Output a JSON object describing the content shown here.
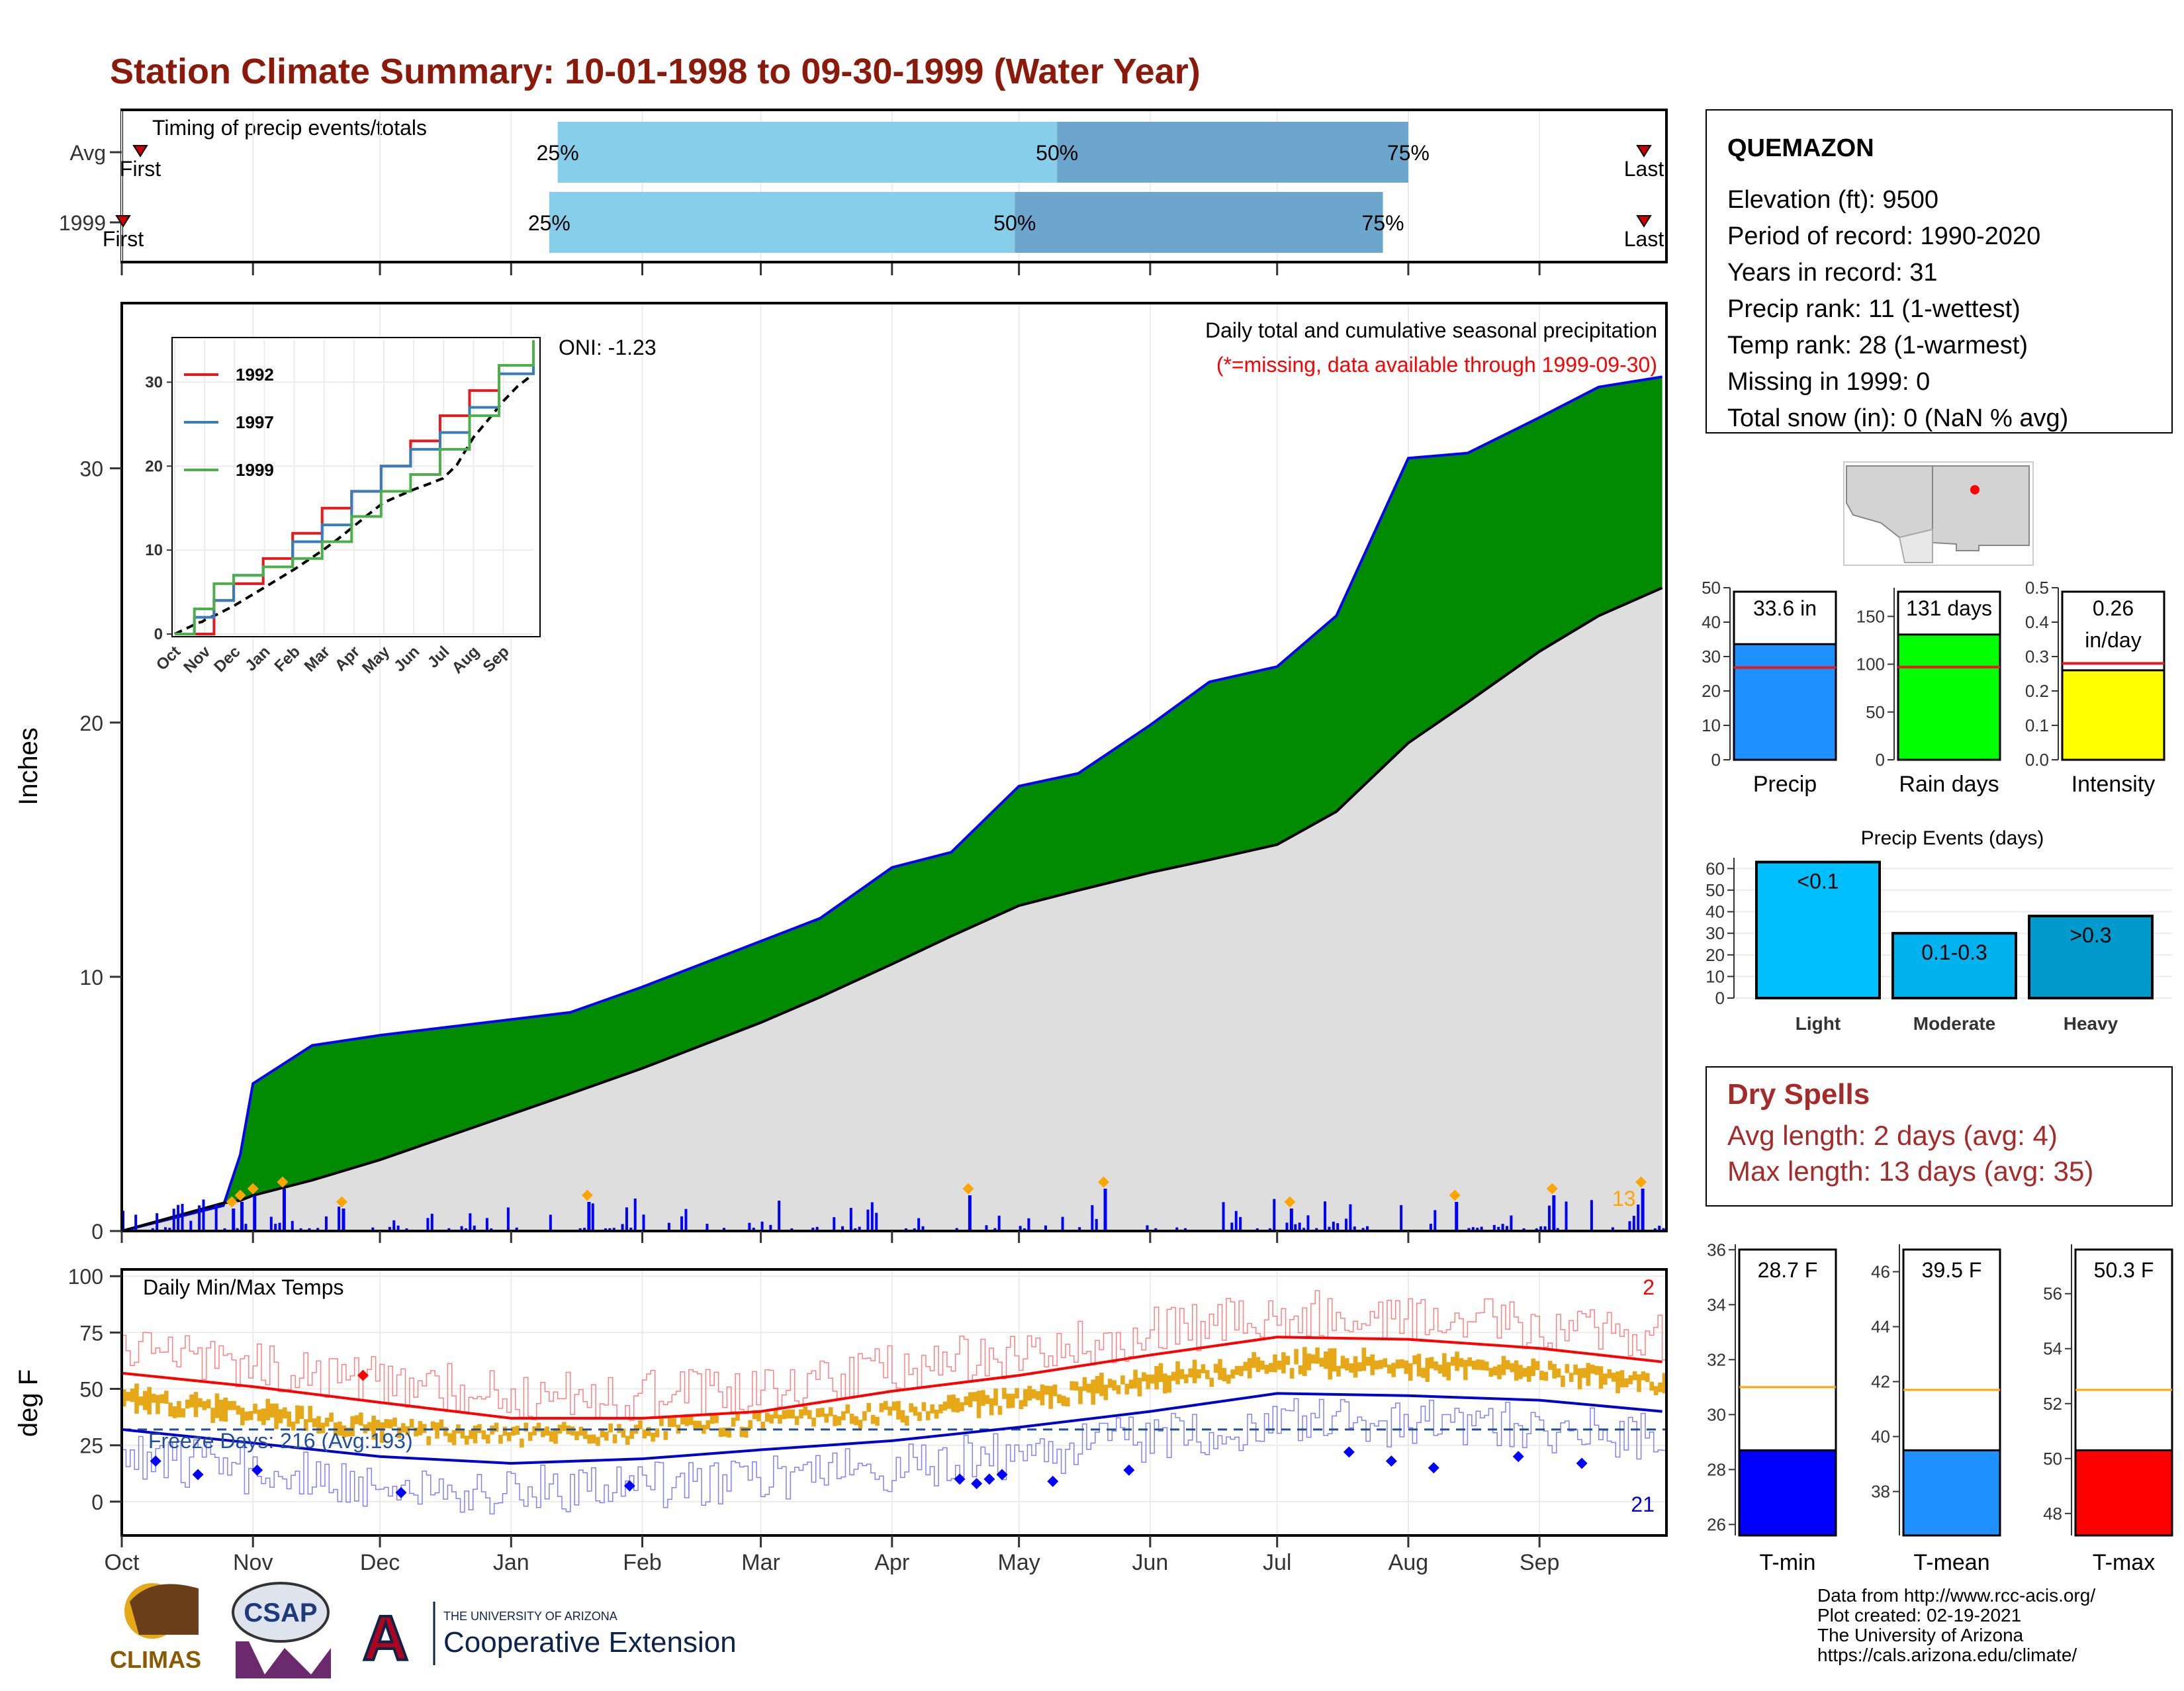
{
  "title": "Station Climate Summary: 10-01-1998 to 09-30-1999 (Water Year)",
  "colors": {
    "title": "#8b1a0a",
    "timing_light": "#87ceeb",
    "timing_dark": "#6ca6cd",
    "cumulative_fill": "#008b00",
    "cumulative_line": "#0000ff",
    "normal_fill": "#dedede",
    "daily_bars": "#0000ff",
    "heavy_marker": "#ffa500",
    "temp_bars": "#e6a817",
    "tmax_line": "#ff0000",
    "tmin_line": "#0000cc",
    "precip_bar": "#1e90ff",
    "raindays_bar": "#00ff00",
    "intensity_bar": "#ffff00",
    "light_bar": "#00bfff",
    "moderate_bar": "#00b2ee",
    "heavy_bar": "#009acd",
    "tmin_bar": "#0000ff",
    "tmean_bar": "#1e90ff",
    "tmax_bar": "#ff0000",
    "dry_text": "#a52a2a"
  },
  "timing": {
    "label": "Timing of precip events/totals",
    "rows": [
      {
        "label": "Avg",
        "first": "First",
        "last": "Last",
        "p25": "25%",
        "p50": "50%",
        "p75": "75%",
        "q25_date": "1999-01-12",
        "q50_date": "1999-05-10",
        "q75_date": "1999-08-01"
      },
      {
        "label": "1999",
        "first": "First",
        "last": "Last",
        "p25": "25%",
        "p50": "50%",
        "p75": "75%",
        "q25_date": "1999-01-10",
        "q50_date": "1999-04-30",
        "q75_date": "1999-07-26"
      }
    ]
  },
  "precip_panel": {
    "ylabel": "Inches",
    "yticks": [
      "0",
      "10",
      "20",
      "30"
    ],
    "title": "Daily total and cumulative seasonal precipitation",
    "subtitle": "(*=missing, data available through 1999-09-30)",
    "oni": "ONI: -1.23",
    "heavy_count": "13"
  },
  "inset": {
    "yticks": [
      "0",
      "10",
      "20",
      "30"
    ],
    "xticks": [
      "Oct",
      "Nov",
      "Dec",
      "Jan",
      "Feb",
      "Mar",
      "Apr",
      "May",
      "Jun",
      "Jul",
      "Aug",
      "Sep"
    ],
    "legend": [
      "1992",
      "1997",
      "1999"
    ],
    "legend_colors": [
      "#e41a1c",
      "#377eb8",
      "#4daf4a"
    ]
  },
  "temp_panel": {
    "ylabel": "deg F",
    "title": "Daily Min/Max Temps",
    "yticks": [
      "0",
      "25",
      "50",
      "75",
      "100"
    ],
    "freeze_label": "Freeze Days: 216 (Avg:193)",
    "hot_count": "2",
    "cold_count": "21"
  },
  "months": [
    "Oct",
    "Nov",
    "Dec",
    "Jan",
    "Feb",
    "Mar",
    "Apr",
    "May",
    "Jun",
    "Jul",
    "Aug",
    "Sep"
  ],
  "station": {
    "name": "QUEMAZON",
    "lines": [
      "Elevation (ft): 9500",
      "Period of record: 1990-2020",
      "Years in record: 31",
      "Precip rank: 11 (1-wettest)",
      "Temp rank: 28 (1-warmest)",
      "Missing in 1999: 0",
      "Total snow (in): 0 (NaN % avg)"
    ]
  },
  "mini_bars": [
    {
      "label": "Precip",
      "value_label": "33.6 in",
      "value": 33.6,
      "avg": 26.8,
      "ymax": 50,
      "yticks": [
        "0",
        "10",
        "20",
        "30",
        "40",
        "50"
      ],
      "tick_values": [
        0,
        10,
        20,
        30,
        40,
        50
      ]
    },
    {
      "label": "Rain days",
      "value_label": "131 days",
      "value": 131,
      "avg": 97,
      "ymax": 180,
      "yticks": [
        "0",
        "50",
        "100",
        "150"
      ],
      "tick_values": [
        0,
        50,
        100,
        150
      ]
    },
    {
      "label": "Intensity",
      "value_label": "0.26",
      "value_label2": "in/day",
      "value": 0.26,
      "avg": 0.28,
      "ymax": 0.5,
      "yticks": [
        "0.0",
        "0.1",
        "0.2",
        "0.3",
        "0.4",
        "0.5"
      ],
      "tick_values": [
        0,
        0.1,
        0.2,
        0.3,
        0.4,
        0.5
      ]
    }
  ],
  "events": {
    "title": "Precip Events (days)",
    "yticks": [
      "0",
      "10",
      "20",
      "30",
      "40",
      "50",
      "60"
    ],
    "bars": [
      {
        "category": "Light",
        "label": "<0.1",
        "value": 63
      },
      {
        "category": "Moderate",
        "label": "0.1-0.3",
        "value": 30
      },
      {
        "category": "Heavy",
        "label": ">0.3",
        "value": 38
      }
    ]
  },
  "dry_spells": {
    "title": "Dry Spells",
    "avg": "Avg length: 2 days (avg: 4)",
    "max": "Max length: 13 days (avg: 35)"
  },
  "temp_bars": [
    {
      "label": "T-min",
      "value_label": "28.7 F",
      "value": 28.7,
      "avg": 31.0,
      "ymin": 25.6,
      "ymax": 36.2,
      "yticks": [
        "26",
        "28",
        "30",
        "32",
        "34",
        "36"
      ],
      "tick_values": [
        26,
        28,
        30,
        32,
        34,
        36
      ]
    },
    {
      "label": "T-mean",
      "value_label": "39.5 F",
      "value": 39.5,
      "avg": 41.7,
      "ymin": 36.4,
      "ymax": 47.0,
      "yticks": [
        "38",
        "40",
        "42",
        "44",
        "46"
      ],
      "tick_values": [
        38,
        40,
        42,
        44,
        46
      ]
    },
    {
      "label": "T-max",
      "value_label": "50.3 F",
      "value": 50.3,
      "avg": 52.5,
      "ymin": 47.2,
      "ymax": 57.8,
      "yticks": [
        "48",
        "50",
        "52",
        "54",
        "56"
      ],
      "tick_values": [
        48,
        50,
        52,
        54,
        56
      ]
    }
  ],
  "footer": {
    "source": "Data from http://www.rcc-acis.org/",
    "created": "Plot created: 02-19-2021",
    "univ": "The University of Arizona",
    "url": "https://cals.arizona.edu/climate/"
  },
  "logos": {
    "climas": "CLIMAS",
    "csap": "CSAP",
    "ua_small": "THE UNIVERSITY OF ARIZONA",
    "coop": "Cooperative Extension"
  },
  "chart_data": [
    {
      "type": "area",
      "title": "Daily total and cumulative seasonal precipitation",
      "ylabel": "Inches",
      "ylim": [
        0,
        36.5
      ],
      "x": [
        "1998-10-01",
        "1998-10-25",
        "1998-10-29",
        "1998-11-01",
        "1998-11-15",
        "1998-12-01",
        "1999-01-15",
        "1999-02-01",
        "1999-03-01",
        "1999-03-15",
        "1999-04-01",
        "1999-04-15",
        "1999-05-01",
        "1999-05-15",
        "1999-06-01",
        "1999-06-15",
        "1999-07-01",
        "1999-07-15",
        "1999-08-01",
        "1999-08-15",
        "1999-09-01",
        "1999-09-15",
        "1999-09-30"
      ],
      "series": [
        {
          "values": [
            0.0,
            1.0,
            3.0,
            5.8,
            7.3,
            7.7,
            8.6,
            9.6,
            11.4,
            12.3,
            14.3,
            14.9,
            17.5,
            18.0,
            19.9,
            21.6,
            22.2,
            24.2,
            30.4,
            30.6,
            32.0,
            33.2,
            33.6
          ]
        },
        {
          "values": [
            0.0,
            1.1,
            1.2,
            1.4,
            2.0,
            2.8,
            5.4,
            6.4,
            8.2,
            9.2,
            10.5,
            11.6,
            12.8,
            13.4,
            14.1,
            14.6,
            15.2,
            16.5,
            19.2,
            20.8,
            22.8,
            24.2,
            25.3
          ]
        }
      ]
    },
    {
      "type": "line",
      "xlim": [
        0,
        365
      ],
      "ylim": [
        0,
        35
      ],
      "series": [
        {
          "name": "1992",
          "x": [
            0,
            20,
            40,
            60,
            90,
            120,
            150,
            180,
            210,
            240,
            270,
            300,
            330,
            365
          ],
          "values": [
            0,
            0,
            4,
            6,
            9,
            12,
            15,
            17,
            20,
            23,
            26,
            29,
            32,
            34
          ]
        },
        {
          "name": "1997",
          "x": [
            0,
            20,
            40,
            60,
            90,
            120,
            150,
            180,
            210,
            240,
            270,
            300,
            330,
            365
          ],
          "values": [
            0,
            2,
            4,
            7,
            8,
            11,
            13,
            17,
            20,
            22,
            24,
            27,
            31,
            34
          ]
        },
        {
          "name": "1999",
          "x": [
            0,
            20,
            40,
            60,
            90,
            120,
            150,
            180,
            210,
            240,
            270,
            300,
            330,
            365
          ],
          "values": [
            0,
            3,
            6,
            7,
            8,
            9,
            11,
            14,
            17,
            19,
            22,
            26,
            32,
            35
          ]
        }
      ]
    },
    {
      "type": "line",
      "title": "Daily Min/Max Temps",
      "ylabel": "deg F",
      "ylim": [
        -15,
        103
      ],
      "x": [
        "1998-10-01",
        "1998-11-01",
        "1998-12-01",
        "1999-01-01",
        "1999-02-01",
        "1999-03-01",
        "1999-04-01",
        "1999-05-01",
        "1999-06-01",
        "1999-07-01",
        "1999-08-01",
        "1999-09-01",
        "1999-09-30"
      ],
      "series": [
        {
          "values": [
            57,
            51,
            44,
            37,
            37,
            40,
            49,
            56,
            65,
            73,
            72,
            68,
            62
          ]
        },
        {
          "values": [
            32,
            26,
            20,
            17,
            19,
            23,
            27,
            33,
            40,
            48,
            47,
            45,
            40
          ]
        }
      ]
    }
  ]
}
